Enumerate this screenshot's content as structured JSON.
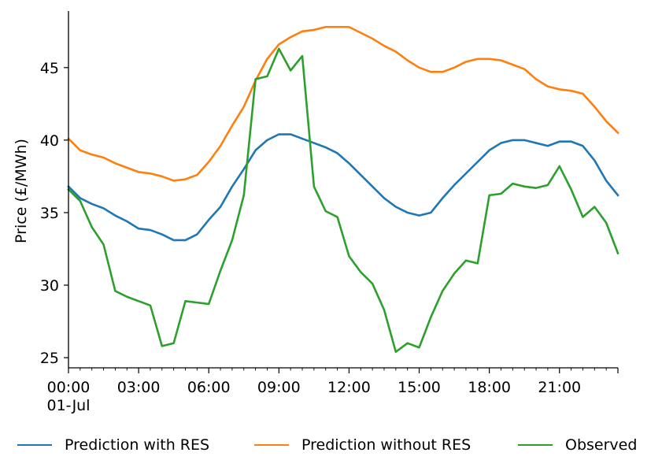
{
  "chart_data": {
    "type": "line",
    "ylabel": "Price (£/MWh)",
    "xlabel": "",
    "ylim": [
      24.3,
      48.9
    ],
    "xlim": [
      0,
      47
    ],
    "y_ticks": [
      25,
      30,
      35,
      40,
      45
    ],
    "x_ticks": [
      {
        "x": 0,
        "label": "00:00",
        "sublabel": "01-Jul"
      },
      {
        "x": 6,
        "label": "03:00"
      },
      {
        "x": 12,
        "label": "06:00"
      },
      {
        "x": 18,
        "label": "09:00"
      },
      {
        "x": 24,
        "label": "12:00"
      },
      {
        "x": 30,
        "label": "15:00"
      },
      {
        "x": 36,
        "label": "18:00"
      },
      {
        "x": 42,
        "label": "21:00"
      }
    ],
    "x_step_minutes": 30,
    "grid": false,
    "legend_position": "bottom",
    "series": [
      {
        "name": "Prediction with RES",
        "color": "#1f77b4",
        "values": [
          36.8,
          36.0,
          35.6,
          35.3,
          34.8,
          34.4,
          33.9,
          33.8,
          33.5,
          33.1,
          33.1,
          33.5,
          34.5,
          35.4,
          36.8,
          38.0,
          39.3,
          40.0,
          40.4,
          40.4,
          40.1,
          39.8,
          39.5,
          39.1,
          38.4,
          37.6,
          36.8,
          36.0,
          35.4,
          35.0,
          34.8,
          35.0,
          36.0,
          36.9,
          37.7,
          38.5,
          39.3,
          39.8,
          40.0,
          40.0,
          39.8,
          39.6,
          39.9,
          39.9,
          39.6,
          38.6,
          37.2,
          36.2
        ]
      },
      {
        "name": "Prediction without RES",
        "color": "#ff7f0e",
        "values": [
          40.1,
          39.3,
          39.0,
          38.8,
          38.4,
          38.1,
          37.8,
          37.7,
          37.5,
          37.2,
          37.3,
          37.6,
          38.5,
          39.6,
          41.0,
          42.3,
          44.1,
          45.6,
          46.6,
          47.1,
          47.5,
          47.6,
          47.8,
          47.8,
          47.8,
          47.4,
          47.0,
          46.5,
          46.1,
          45.5,
          45.0,
          44.7,
          44.7,
          45.0,
          45.4,
          45.6,
          45.6,
          45.5,
          45.2,
          44.9,
          44.2,
          43.7,
          43.5,
          43.4,
          43.2,
          42.3,
          41.3,
          40.5
        ]
      },
      {
        "name": "Observed",
        "color": "#2ca02c",
        "values": [
          36.6,
          35.8,
          34.0,
          32.8,
          29.6,
          29.2,
          28.9,
          28.6,
          25.8,
          26.0,
          28.9,
          28.8,
          28.7,
          31.0,
          33.1,
          36.2,
          44.2,
          44.4,
          46.3,
          44.8,
          45.8,
          36.8,
          35.1,
          34.7,
          32.0,
          30.9,
          30.1,
          28.3,
          25.4,
          26.0,
          25.7,
          27.8,
          29.6,
          30.8,
          31.7,
          31.5,
          36.2,
          36.3,
          37.0,
          36.8,
          36.7,
          36.9,
          38.2,
          36.6,
          34.7,
          35.4,
          34.3,
          32.2
        ]
      }
    ]
  }
}
